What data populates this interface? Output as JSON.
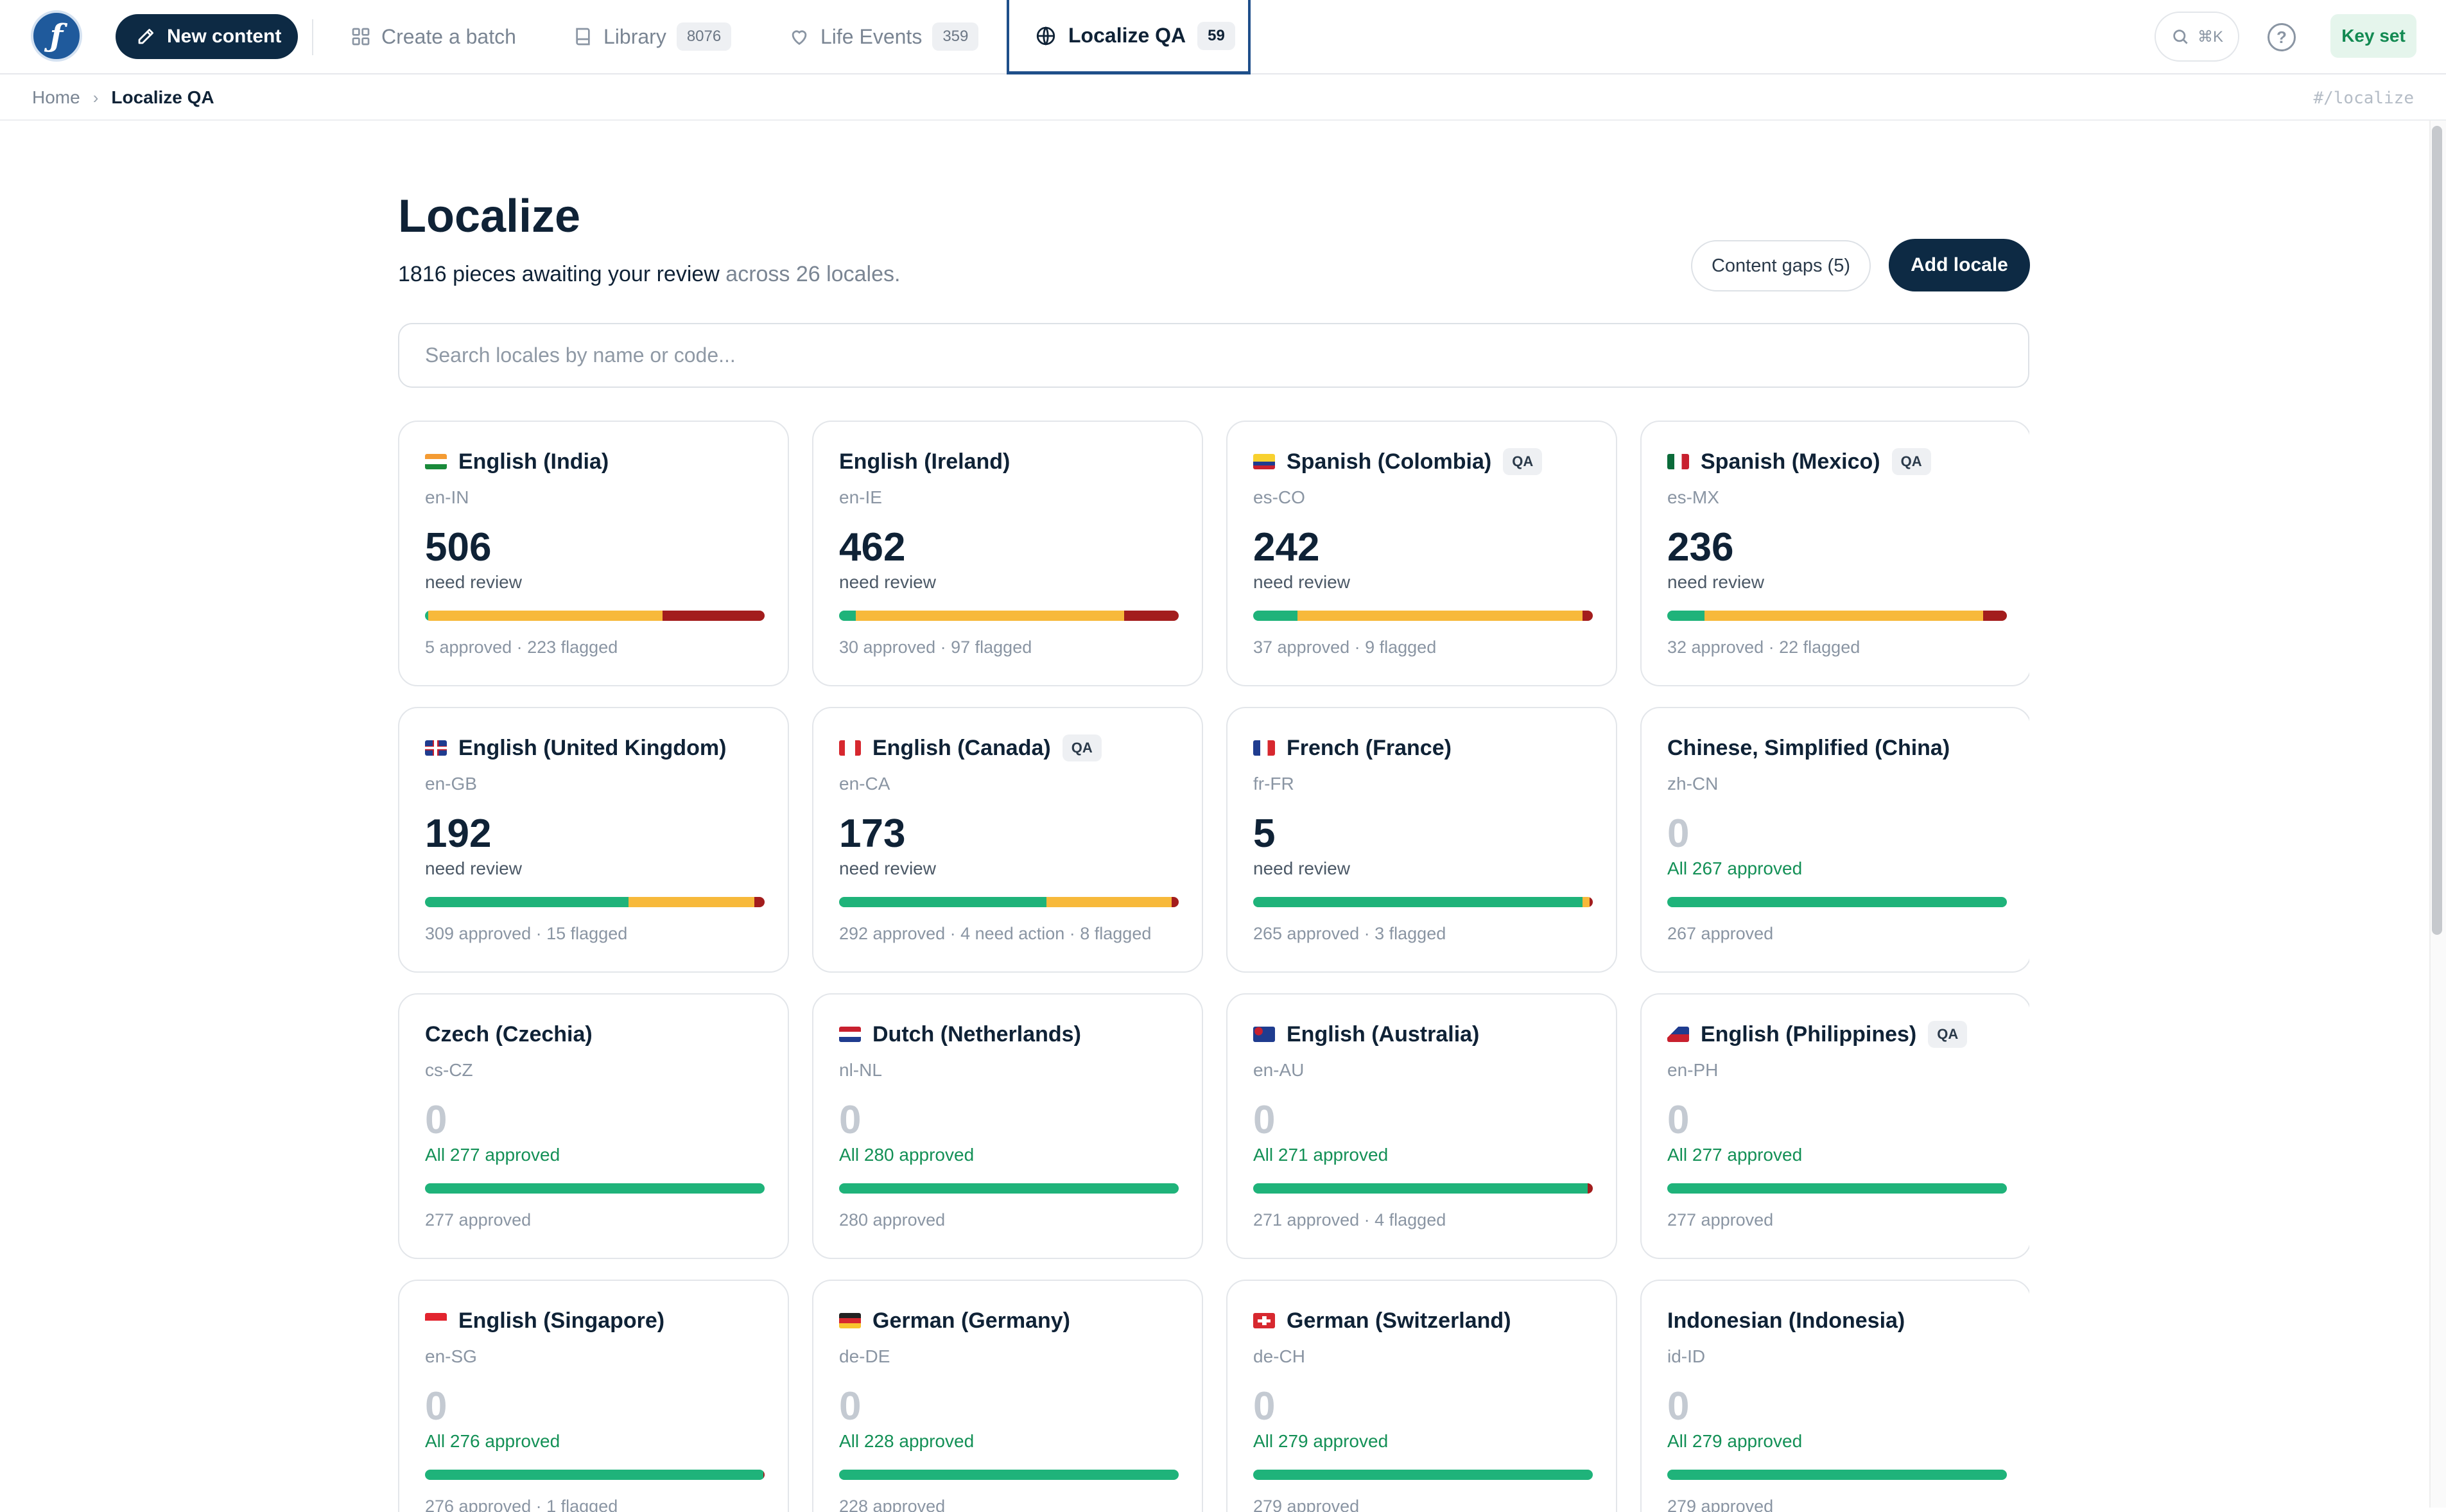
{
  "nav": {
    "new_content": "New content",
    "create_batch": "Create a batch",
    "library": "Library",
    "library_count": "8076",
    "life_events": "Life Events",
    "life_events_count": "359",
    "localize": "Localize QA",
    "localize_count": "59",
    "search_shortcut": "⌘K",
    "key_set": "Key set"
  },
  "breadcrumb": {
    "home": "Home",
    "current": "Localize QA",
    "route": "#/localize"
  },
  "page": {
    "title": "Localize",
    "subtitle_highlight": "1816 pieces awaiting your review",
    "subtitle_rest": " across 26 locales.",
    "content_gaps": "Content gaps (5)",
    "add_locale": "Add locale",
    "search_placeholder": "Search locales by name or code..."
  },
  "colors": {
    "approved": "#1fb37a",
    "needs_review": "#f7b93b",
    "flagged": "#a31d1d",
    "brand": "#0d2a44"
  },
  "locales": [
    {
      "name": "English (India)",
      "code": "en-IN",
      "qa": false,
      "flag": "in",
      "count": "506",
      "status": "need review",
      "summary": "5 approved · 223 flagged",
      "bar": [
        0.01,
        0.69,
        0.3
      ]
    },
    {
      "name": "English (Ireland)",
      "code": "en-IE",
      "qa": false,
      "flag": "",
      "count": "462",
      "status": "need review",
      "summary": "30 approved · 97 flagged",
      "bar": [
        0.05,
        0.79,
        0.16
      ]
    },
    {
      "name": "Spanish (Colombia)",
      "code": "es-CO",
      "qa": true,
      "qa_label": "QA",
      "flag": "co",
      "count": "242",
      "status": "need review",
      "summary": "37 approved · 9 flagged",
      "bar": [
        0.13,
        0.84,
        0.03
      ]
    },
    {
      "name": "Spanish (Mexico)",
      "code": "es-MX",
      "qa": true,
      "qa_label": "QA",
      "flag": "mx",
      "count": "236",
      "status": "need review",
      "summary": "32 approved · 22 flagged",
      "bar": [
        0.11,
        0.82,
        0.07
      ]
    },
    {
      "name": "English (United Kingdom)",
      "code": "en-GB",
      "qa": false,
      "flag": "gb",
      "count": "192",
      "status": "need review",
      "summary": "309 approved · 15 flagged",
      "bar": [
        0.6,
        0.37,
        0.03
      ]
    },
    {
      "name": "English (Canada)",
      "code": "en-CA",
      "qa": true,
      "qa_label": "QA",
      "flag": "ca",
      "count": "173",
      "status": "need review",
      "summary": "292 approved · 4 need action · 8 flagged",
      "bar": [
        0.61,
        0.37,
        0.02
      ]
    },
    {
      "name": "French (France)",
      "code": "fr-FR",
      "qa": false,
      "flag": "fr",
      "count": "5",
      "status": "need review",
      "summary": "265 approved · 3 flagged",
      "bar": [
        0.97,
        0.02,
        0.01
      ]
    },
    {
      "name": "Chinese, Simplified (China)",
      "code": "zh-CN",
      "qa": false,
      "flag": "",
      "count": "0",
      "status": "All 267 approved",
      "summary": "267 approved",
      "bar": [
        1,
        0,
        0
      ]
    },
    {
      "name": "Czech (Czechia)",
      "code": "cs-CZ",
      "qa": false,
      "flag": "",
      "count": "0",
      "status": "All 277 approved",
      "summary": "277 approved",
      "bar": [
        1,
        0,
        0
      ]
    },
    {
      "name": "Dutch (Netherlands)",
      "code": "nl-NL",
      "qa": false,
      "flag": "nl",
      "count": "0",
      "status": "All 280 approved",
      "summary": "280 approved",
      "bar": [
        1,
        0,
        0
      ]
    },
    {
      "name": "English (Australia)",
      "code": "en-AU",
      "qa": false,
      "flag": "au",
      "count": "0",
      "status": "All 271 approved",
      "summary": "271 approved · 4 flagged",
      "bar": [
        0.985,
        0,
        0.015
      ]
    },
    {
      "name": "English (Philippines)",
      "code": "en-PH",
      "qa": true,
      "qa_label": "QA",
      "flag": "ph",
      "count": "0",
      "status": "All 277 approved",
      "summary": "277 approved",
      "bar": [
        1,
        0,
        0
      ]
    },
    {
      "name": "English (Singapore)",
      "code": "en-SG",
      "qa": false,
      "flag": "sg",
      "count": "0",
      "status": "All 276 approved",
      "summary": "276 approved · 1 flagged",
      "bar": [
        0.996,
        0,
        0.004
      ]
    },
    {
      "name": "German (Germany)",
      "code": "de-DE",
      "qa": false,
      "flag": "de",
      "count": "0",
      "status": "All 228 approved",
      "summary": "228 approved",
      "bar": [
        1,
        0,
        0
      ]
    },
    {
      "name": "German (Switzerland)",
      "code": "de-CH",
      "qa": false,
      "flag": "ch",
      "count": "0",
      "status": "All 279 approved",
      "summary": "279 approved",
      "bar": [
        1,
        0,
        0
      ]
    },
    {
      "name": "Indonesian (Indonesia)",
      "code": "id-ID",
      "qa": false,
      "flag": "",
      "count": "0",
      "status": "All 279 approved",
      "summary": "279 approved",
      "bar": [
        1,
        0,
        0
      ]
    }
  ]
}
